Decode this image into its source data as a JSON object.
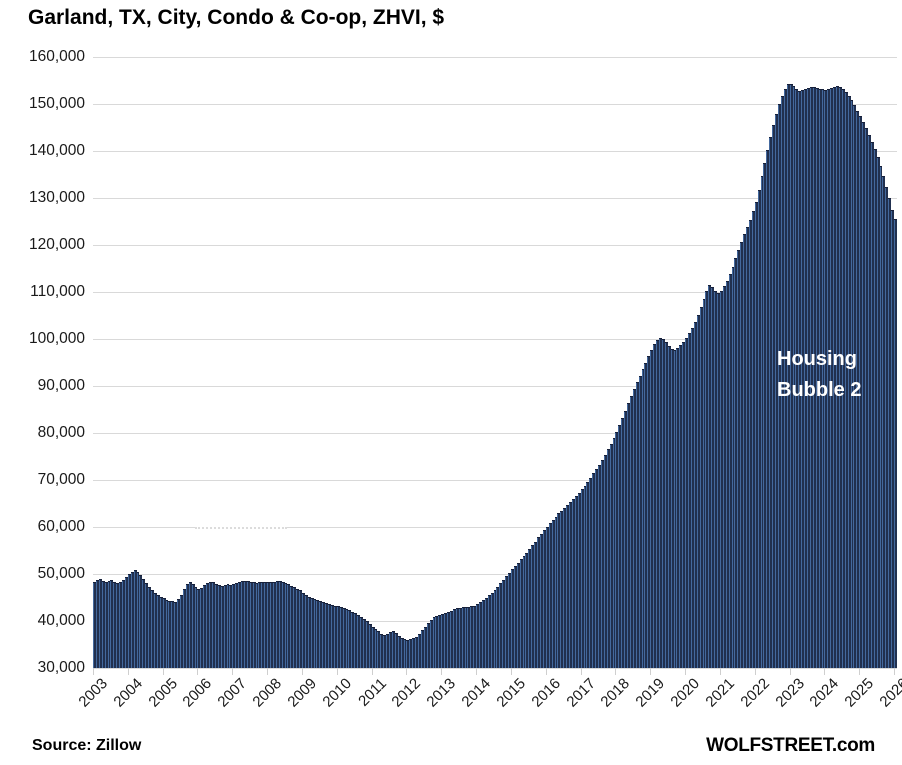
{
  "title": "Garland, TX, City, Condo & Co-op, ZHVI, $",
  "annotation": {
    "line1": "Housing",
    "line2": "Bubble 2"
  },
  "footer": {
    "source": "Source: Zillow",
    "brand": "WOLFSTREET.com"
  },
  "colors": {
    "bar_fill": "#21304f",
    "bar_stripe": "#44699e",
    "bar_cap": "#16203a",
    "gridline": "#d9d9d9",
    "annotation_text": "#ffffff"
  },
  "chart_data": {
    "type": "bar",
    "title": "Garland, TX, City, Condo & Co-op, ZHVI, $",
    "ylabel": "ZHVI, $",
    "xlabel": "",
    "ylim": [
      30000,
      160000
    ],
    "grid": true,
    "legend_position": "none",
    "y_ticks": [
      30000,
      40000,
      50000,
      60000,
      70000,
      80000,
      90000,
      100000,
      110000,
      120000,
      130000,
      140000,
      150000,
      160000
    ],
    "x_tick_labels": [
      "2003",
      "2004",
      "2005",
      "2006",
      "2007",
      "2008",
      "2009",
      "2010",
      "2011",
      "2012",
      "2013",
      "2014",
      "2015",
      "2016",
      "2017",
      "2018",
      "2019",
      "2020",
      "2021",
      "2022",
      "2023",
      "2024",
      "2025",
      "2026"
    ],
    "x_start": "2003-01",
    "x_end": "2026-01",
    "frequency": "monthly",
    "series": [
      {
        "name": "Garland TX Condo & Co-op ZHVI",
        "values": [
          48400,
          48700,
          48900,
          48600,
          48300,
          48500,
          48800,
          48400,
          48000,
          48200,
          48700,
          49400,
          50000,
          50500,
          50800,
          50400,
          49700,
          48900,
          48100,
          47300,
          46600,
          46000,
          45500,
          45100,
          44800,
          44500,
          44300,
          44200,
          44100,
          44600,
          45600,
          46800,
          47800,
          48200,
          47800,
          47200,
          46900,
          47100,
          47600,
          48100,
          48300,
          48200,
          47900,
          47600,
          47500,
          47700,
          47800,
          47700,
          47900,
          48100,
          48300,
          48500,
          48600,
          48500,
          48300,
          48200,
          48100,
          48200,
          48300,
          48400,
          48400,
          48300,
          48400,
          48500,
          48600,
          48400,
          48100,
          47800,
          47500,
          47200,
          46900,
          46600,
          45900,
          45500,
          45200,
          44900,
          44700,
          44500,
          44300,
          44100,
          43900,
          43700,
          43500,
          43300,
          43100,
          42900,
          42700,
          42500,
          42300,
          42000,
          41700,
          41300,
          40900,
          40500,
          40000,
          39400,
          38800,
          38300,
          37800,
          37300,
          37000,
          37200,
          37600,
          37900,
          37500,
          36900,
          36400,
          36100,
          36000,
          36100,
          36300,
          36700,
          37300,
          38000,
          38800,
          39600,
          40300,
          40800,
          41100,
          41300,
          41500,
          41700,
          41900,
          42200,
          42500,
          42700,
          42800,
          42900,
          42900,
          43000,
          43100,
          43300,
          43600,
          44000,
          44500,
          45000,
          45500,
          46000,
          46600,
          47300,
          48000,
          48800,
          49500,
          50300,
          51000,
          51700,
          52400,
          53100,
          53800,
          54500,
          55300,
          56100,
          56900,
          57800,
          58600,
          59400,
          60100,
          60800,
          61500,
          62200,
          62900,
          63500,
          64100,
          64700,
          65300,
          65900,
          66600,
          67300,
          68000,
          68800,
          69600,
          70500,
          71400,
          72300,
          73300,
          74300,
          75400,
          76500,
          77700,
          78900,
          80200,
          81600,
          83100,
          84700,
          86300,
          87900,
          89400,
          90800,
          92200,
          93600,
          95000,
          96400,
          97700,
          98900,
          99800,
          100300,
          100100,
          99400,
          98500,
          97800,
          97700,
          98100,
          98700,
          99400,
          100200,
          101200,
          102400,
          103700,
          105200,
          106800,
          108500,
          110200,
          111400,
          111000,
          110200,
          109800,
          110300,
          111200,
          112400,
          113800,
          115400,
          117200,
          119000,
          120700,
          122300,
          123800,
          125400,
          127200,
          129200,
          131800,
          134600,
          137500,
          140300,
          143000,
          145500,
          147800,
          149900,
          151700,
          153200,
          154200,
          154300,
          153900,
          153300,
          152800,
          152900,
          153200,
          153500,
          153700,
          153600,
          153400,
          153200,
          153100,
          153000,
          153100,
          153400,
          153700,
          153800,
          153600,
          153200,
          152600,
          151800,
          150800,
          149700,
          148600,
          147400,
          146200,
          144900,
          143500,
          142000,
          140400,
          138700,
          136800,
          134700,
          132400,
          130000,
          127500,
          125600
        ]
      }
    ]
  }
}
